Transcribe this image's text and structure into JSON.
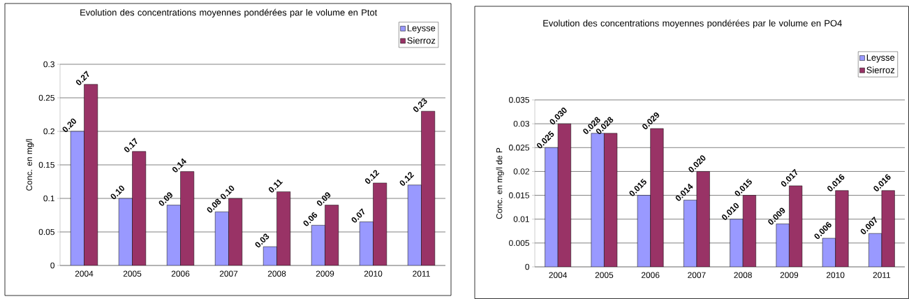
{
  "chart_data": [
    {
      "type": "bar",
      "title": "Evolution des concentrations moyennes pondérées par le volume en Ptot",
      "ylabel": "Conc. en mg/l",
      "categories": [
        "2004",
        "2005",
        "2006",
        "2007",
        "2008",
        "2009",
        "2010",
        "2011"
      ],
      "series": [
        {
          "name": "Leysse",
          "color": "#9999ff",
          "values": [
            0.2,
            0.1,
            0.09,
            0.08,
            0.028,
            0.06,
            0.065,
            0.12
          ],
          "value_labels": [
            "0.20",
            "0.10",
            "0.09",
            "0.08",
            "0.03",
            "0.06",
            "0.07",
            "0.12"
          ]
        },
        {
          "name": "Sierroz",
          "color": "#993366",
          "values": [
            0.27,
            0.17,
            0.14,
            0.1,
            0.11,
            0.09,
            0.123,
            0.23
          ],
          "value_labels": [
            "0.27",
            "0.17",
            "0.14",
            "0.10",
            "0.11",
            "0.09",
            "0.12",
            "0.23"
          ]
        }
      ],
      "ylim": [
        0,
        0.3
      ],
      "yticks": [
        0,
        0.05,
        0.1,
        0.15,
        0.2,
        0.25,
        0.3
      ],
      "grid": "y",
      "legend": "top right"
    },
    {
      "type": "bar",
      "title": "Evolution des concentrations moyennes pondérées par le volume en PO4",
      "ylabel": "Conc. en mg/l de P",
      "categories": [
        "2004",
        "2005",
        "2006",
        "2007",
        "2008",
        "2009",
        "2010",
        "2011"
      ],
      "series": [
        {
          "name": "Leysse",
          "color": "#9999ff",
          "values": [
            0.025,
            0.028,
            0.015,
            0.014,
            0.01,
            0.009,
            0.006,
            0.007
          ],
          "value_labels": [
            "0.025",
            "0.028",
            "0.015",
            "0.014",
            "0.010",
            "0.009",
            "0.006",
            "0.007"
          ]
        },
        {
          "name": "Sierroz",
          "color": "#993366",
          "values": [
            0.03,
            0.028,
            0.029,
            0.02,
            0.015,
            0.017,
            0.016,
            0.016
          ],
          "value_labels": [
            "0.030",
            "0.028",
            "0.029",
            "0.020",
            "0.015",
            "0.017",
            "0.016",
            "0.016"
          ]
        }
      ],
      "ylim": [
        0,
        0.035
      ],
      "yticks": [
        0,
        0.005,
        0.01,
        0.015,
        0.02,
        0.025,
        0.03,
        0.035
      ],
      "grid": "y",
      "legend": "top right"
    }
  ]
}
